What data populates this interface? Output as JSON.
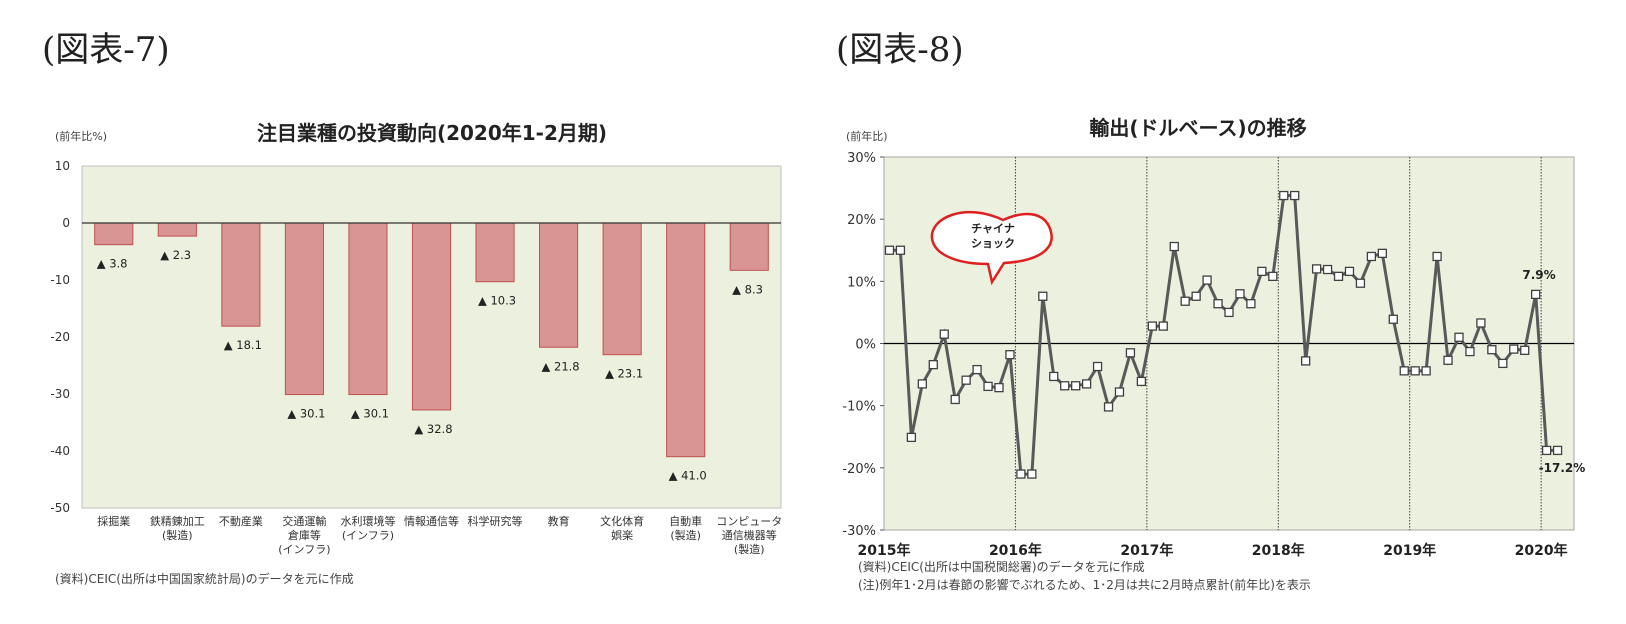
{
  "figure7": {
    "label": "(図表-7)",
    "unit": "(前年比%)",
    "source": "(資料)CEIC(出所は中国国家統計局)のデータを元に作成",
    "chart_data": {
      "type": "bar",
      "title": "注目業種の投資動向(2020年1-2月期)",
      "categories": [
        [
          "採掘業"
        ],
        [
          "鉄精錬加工",
          "(製造)"
        ],
        [
          "不動産業"
        ],
        [
          "交通運輸",
          "倉庫等",
          "(インフラ)"
        ],
        [
          "水利環境等",
          "(インフラ)"
        ],
        [
          "情報通信等"
        ],
        [
          "科学研究等"
        ],
        [
          "教育"
        ],
        [
          "文化体育",
          "娯楽"
        ],
        [
          "自動車",
          "(製造)"
        ],
        [
          "コンピュータ",
          "通信機器等",
          "(製造)"
        ]
      ],
      "values": [
        -3.8,
        -2.3,
        -18.1,
        -30.1,
        -30.1,
        -32.8,
        -10.3,
        -21.8,
        -23.1,
        -41.0,
        -8.3
      ],
      "data_labels": [
        "▲ 3.8",
        "▲ 2.3",
        "▲ 18.1",
        "▲ 30.1",
        "▲ 30.1",
        "▲ 32.8",
        "▲ 10.3",
        "▲ 21.8",
        "▲ 23.1",
        "▲ 41.0",
        "▲ 8.3"
      ],
      "ylim": [
        -50,
        10
      ],
      "yticks": [
        10,
        0,
        -10,
        -20,
        -30,
        -40,
        -50
      ],
      "ytick_labels": [
        "10",
        "0",
        "-10",
        "-20",
        "-30",
        "-40",
        "-50"
      ],
      "colors": {
        "bar": "#d99594",
        "bar_edge": "#c0504d",
        "plot_bg": "#ebf1de"
      }
    }
  },
  "figure8": {
    "label": "(図表-8)",
    "unit": "(前年比)",
    "source_line1": "(資料)CEIC(出所は中国税関総署)のデータを元に作成",
    "source_line2": "(注)例年1･2月は春節の影響でぶれるため、1･2月は共に2月時点累計(前年比)を表示",
    "callout": [
      "チャイナ",
      "ショック"
    ],
    "chart_data": {
      "type": "line",
      "title": "輸出(ドルベース)の推移",
      "series": [
        {
          "values": [
            15.0,
            15.0,
            -15.1,
            -6.5,
            -3.4,
            1.5,
            -9.0,
            -5.9,
            -4.2,
            -6.9,
            -7.1,
            -1.8,
            -21.0,
            -21.0,
            7.6,
            -5.3,
            -6.8,
            -6.8,
            -6.5,
            -3.7,
            -10.2,
            -7.8,
            -1.5,
            -6.1,
            2.8,
            2.8,
            15.6,
            6.8,
            7.6,
            10.2,
            6.4,
            5.0,
            8.0,
            6.4,
            11.6,
            10.8,
            23.8,
            23.8,
            -2.8,
            12.0,
            11.9,
            10.8,
            11.6,
            9.7,
            14.0,
            14.5,
            3.9,
            -4.4,
            -4.4,
            -4.4,
            14.0,
            -2.7,
            1.0,
            -1.3,
            3.3,
            -1.0,
            -3.2,
            -0.9,
            -1.1,
            7.9,
            -17.2,
            -17.2
          ]
        }
      ],
      "x_start": "2015年1月",
      "x_end": "2020年2月",
      "xticks": [
        "2015年",
        "2016年",
        "2017年",
        "2018年",
        "2019年",
        "2020年"
      ],
      "ylim": [
        -30,
        30
      ],
      "ytick_labels": [
        "30%",
        "20%",
        "10%",
        "0%",
        "-10%",
        "-20%",
        "-30%"
      ],
      "annotations": [
        "7.9%",
        "-17.2%"
      ],
      "colors": {
        "line": "#595959",
        "plot_bg": "#ebf1de",
        "callout_border": "#e02020"
      }
    }
  }
}
